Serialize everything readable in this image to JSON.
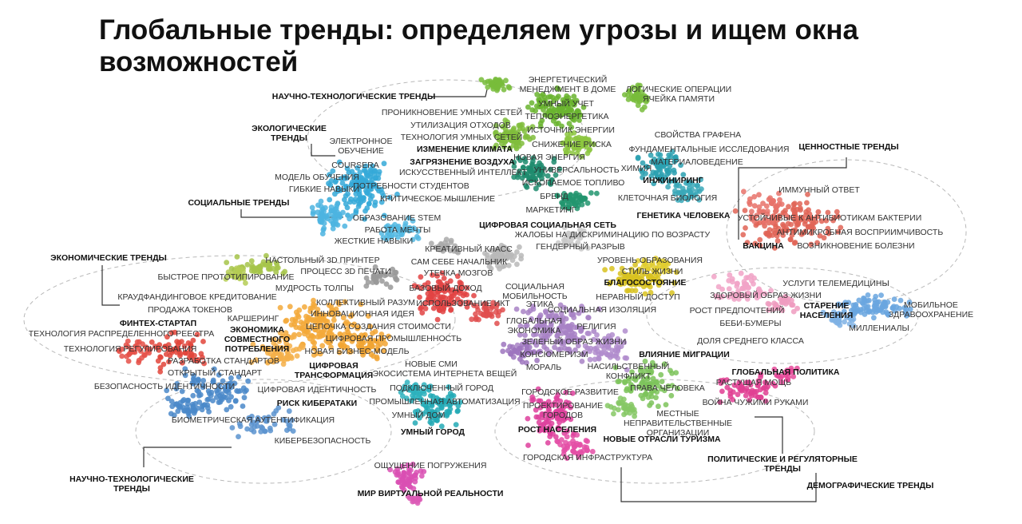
{
  "title": "Глобальные тренды: определяем угрозы и ищем окна возможностей",
  "category_labels": [
    {
      "lines": [
        "НАУЧНО-ТЕХНОЛОГИЧЕСКИЕ ТРЕНДЫ"
      ]
    },
    {
      "lines": [
        "ЭКОЛОГИЧЕСКИЕ",
        "ТРЕНДЫ"
      ]
    },
    {
      "lines": [
        "СОЦИАЛЬНЫЕ ТРЕНДЫ"
      ]
    },
    {
      "lines": [
        "ЭКОНОМИЧЕСКИЕ ТРЕНДЫ"
      ]
    },
    {
      "lines": [
        "ЦЕННОСТНЫЕ ТРЕНДЫ"
      ]
    },
    {
      "lines": [
        "НАУЧНО-ТЕХНОЛОГИЧЕСКИЕ",
        "ТРЕНДЫ"
      ]
    },
    {
      "lines": [
        "ПОЛИТИЧЕСКИЕ И РЕГУЛЯТОРНЫЕ",
        "ТРЕНДЫ"
      ]
    },
    {
      "lines": [
        "ДЕМОГРАФИЧЕСКИЕ ТРЕНДЫ"
      ]
    }
  ],
  "group_labels": [
    {
      "lines": [
        "ИЗМЕНЕНИЕ КЛИМАТА"
      ]
    },
    {
      "lines": [
        "ЗАГРЯЗНЕНИЕ ВОЗДУХА"
      ]
    },
    {
      "lines": [
        "ИНЖИНИРИНГ"
      ]
    },
    {
      "lines": [
        "ГЕНЕТИКА ЧЕЛОВЕКА"
      ]
    },
    {
      "lines": [
        "ЦИФРОВАЯ СОЦИАЛЬНАЯ СЕТЬ"
      ]
    },
    {
      "lines": [
        "ВАКЦИНА"
      ]
    },
    {
      "lines": [
        "БЛАГОСОСТОЯНИЕ"
      ]
    },
    {
      "lines": [
        "СТАРЕНИЕ",
        "НАСЕЛЕНИЯ"
      ]
    },
    {
      "lines": [
        "ФИНТЕХ-СТАРТАП"
      ]
    },
    {
      "lines": [
        "ЭКОНОМИКА",
        "СОВМЕСТНОГО",
        "ПОТРЕБЛЕНИЯ"
      ]
    },
    {
      "lines": [
        "ЦИФРОВАЯ",
        "ТРАНСФОРМАЦИЯ"
      ]
    },
    {
      "lines": [
        "ВЛИЯНИЕ МИГРАЦИИ"
      ]
    },
    {
      "lines": [
        "ГЛОБАЛЬНАЯ ПОЛИТИКА"
      ]
    },
    {
      "lines": [
        "РИСК КИБЕРАТАКИ"
      ]
    },
    {
      "lines": [
        "УМНЫЙ ГОРОД"
      ]
    },
    {
      "lines": [
        "РОСТ НАСЕЛЕНИЯ"
      ]
    },
    {
      "lines": [
        "НОВЫЕ ОТРАСЛИ ТУРИЗМА"
      ]
    },
    {
      "lines": [
        "МИР ВИРТУАЛЬНОЙ РЕАЛЬНОСТИ"
      ]
    }
  ],
  "item_labels": [
    {
      "lines": [
        "ЭНЕРГЕТИЧЕСКИЙ",
        "МЕНЕДЖМЕНТ В ДОМЕ"
      ]
    },
    {
      "lines": [
        "ЛОГИЧЕСКИЕ ОПЕРАЦИИ",
        "ЯЧЕЙКА ПАМЯТИ"
      ]
    },
    {
      "lines": [
        "УМНЫЙ УЧЕТ"
      ]
    },
    {
      "lines": [
        "ПРОНИКНОВЕНИЕ УМНЫХ СЕТЕЙ"
      ]
    },
    {
      "lines": [
        "ТЕПЛОЭНЕРГЕТИКА"
      ]
    },
    {
      "lines": [
        "УТИЛИЗАЦИЯ ОТХОДОВ"
      ]
    },
    {
      "lines": [
        "ИСТОЧНИК ЭНЕРГИИ"
      ]
    },
    {
      "lines": [
        "ТЕХНОЛОГИЯ УМНЫХ СЕТЕЙ"
      ]
    },
    {
      "lines": [
        "СНИЖЕНИЕ РИСКА"
      ]
    },
    {
      "lines": [
        "СВОЙСТВА ГРАФЕНА"
      ]
    },
    {
      "lines": [
        "ЭЛЕКТРОННОЕ",
        "ОБУЧЕНИЕ"
      ]
    },
    {
      "lines": [
        "ФУНДАМЕНТАЛЬНЫЕ ИССЛЕДОВАНИЯ"
      ]
    },
    {
      "lines": [
        "НОВАЯ ЭНЕРГИЯ"
      ]
    },
    {
      "lines": [
        "МАТЕРИАЛОВЕДЕНИЕ"
      ]
    },
    {
      "lines": [
        "COURSERA"
      ]
    },
    {
      "lines": [
        "УНИВЕРСАЛЬНОСТЬ"
      ]
    },
    {
      "lines": [
        "ХИМИЯ"
      ]
    },
    {
      "lines": [
        "МОДЕЛЬ ОБУЧЕНИЯ"
      ]
    },
    {
      "lines": [
        "ИСКУССТВЕННЫЙ ИНТЕЛЛЕКТ"
      ]
    },
    {
      "lines": [
        "ИСКОПАЕМОЕ ТОПЛИВО"
      ]
    },
    {
      "lines": [
        "ГИБКИЕ НАВЫКИ"
      ]
    },
    {
      "lines": [
        "ПОТРЕБНОСТИ СТУДЕНТОВ"
      ]
    },
    {
      "lines": [
        "ИММУННЫЙ ОТВЕТ"
      ]
    },
    {
      "lines": [
        "БРЕНД"
      ]
    },
    {
      "lines": [
        "КРИТИЧЕСКОЕ МЫШЛЕНИЕ"
      ]
    },
    {
      "lines": [
        "КЛЕТОЧНАЯ БИОЛОГИЯ"
      ]
    },
    {
      "lines": [
        "МАРКЕТИНГ"
      ]
    },
    {
      "lines": [
        "ОБРАЗОВАНИЕ STEM"
      ]
    },
    {
      "lines": [
        "УСТОЙЧИВЫЕ К АНТИБИОТИКАМ БАКТЕРИИ"
      ]
    },
    {
      "lines": [
        "РАБОТА МЕЧТЫ"
      ]
    },
    {
      "lines": [
        "АНТИМИКРОБНАЯ ВОСПРИИМЧИВОСТЬ"
      ]
    },
    {
      "lines": [
        "ЖАЛОБЫ НА ДИСКРИМИНАЦИЮ ПО ВОЗРАСТУ"
      ]
    },
    {
      "lines": [
        "ЖЕСТКИЕ НАВЫКИ"
      ]
    },
    {
      "lines": [
        "ГЕНДЕРНЫЙ РАЗРЫВ"
      ]
    },
    {
      "lines": [
        "ВОЗНИКНОВЕНИЕ БОЛЕЗНИ"
      ]
    },
    {
      "lines": [
        "КРЕАТИВНЫЙ КЛАСС"
      ]
    },
    {
      "lines": [
        "НАСТОЛЬНЫЙ 3D ПРИНТЕР"
      ]
    },
    {
      "lines": [
        "САМ СЕБЕ НАЧАЛЬНИК"
      ]
    },
    {
      "lines": [
        "УРОВЕНЬ ОБРАЗОВАНИЯ"
      ]
    },
    {
      "lines": [
        "ПРОЦЕСС 3D ПЕЧАТИ"
      ]
    },
    {
      "lines": [
        "УТЕЧКА МОЗГОВ"
      ]
    },
    {
      "lines": [
        "СТИЛЬ ЖИЗНИ"
      ]
    },
    {
      "lines": [
        "БЫСТРОЕ ПРОТОТИПИРОВАНИЕ"
      ]
    },
    {
      "lines": [
        "МУДРОСТЬ ТОЛПЫ"
      ]
    },
    {
      "lines": [
        "БАЗОВЫЙ ДОХОД"
      ]
    },
    {
      "lines": [
        "СОЦИАЛЬНАЯ",
        "МОБИЛЬНОСТЬ"
      ]
    },
    {
      "lines": [
        "УСЛУГИ ТЕЛЕМЕДИЦИНЫ"
      ]
    },
    {
      "lines": [
        "НЕРАВНЫЙ ДОСТУП"
      ]
    },
    {
      "lines": [
        "ЗДОРОВЫЙ ОБРАЗ ЖИЗНИ"
      ]
    },
    {
      "lines": [
        "КРАУДФАНДИНГОВОЕ КРЕДИТОВАНИЕ"
      ]
    },
    {
      "lines": [
        "КОЛЛЕКТИВНЫЙ РАЗУМ"
      ]
    },
    {
      "lines": [
        "ИСПОЛЬЗОВАНИЕ ИКТ"
      ]
    },
    {
      "lines": [
        "ЭТИКА"
      ]
    },
    {
      "lines": [
        "МОБИЛЬНОЕ",
        "ЗДРАВООХРАНЕНИЕ"
      ]
    },
    {
      "lines": [
        "ПРОДАЖА ТОКЕНОВ"
      ]
    },
    {
      "lines": [
        "СОЦИАЛЬНАЯ ИЗОЛЯЦИЯ"
      ]
    },
    {
      "lines": [
        "РОСТ ПРЕДПОЧТЕНИЙ"
      ]
    },
    {
      "lines": [
        "ИННОВАЦИОННАЯ ИДЕЯ"
      ]
    },
    {
      "lines": [
        "ГЛОБАЛЬНАЯ",
        "ЭКОНОМИКА"
      ]
    },
    {
      "lines": [
        "БЕБИ-БУМЕРЫ"
      ]
    },
    {
      "lines": [
        "ТЕХНОЛОГИЯ РАСПРЕДЕЛЕННОГО РЕЕСТРА"
      ]
    },
    {
      "lines": [
        "КАРШЕРИНГ"
      ]
    },
    {
      "lines": [
        "ЦЕПОЧКА СОЗДАНИЯ СТОИМОСТИ"
      ]
    },
    {
      "lines": [
        "РЕЛИГИЯ"
      ]
    },
    {
      "lines": [
        "МИЛЛЕНИАЛЫ"
      ]
    },
    {
      "lines": [
        "ТЕХНОЛОГИЯ РЕГУЛИРОВАНИЯ"
      ]
    },
    {
      "lines": [
        "ЦИФРОВАЯ ПРОМЫШЛЕННОСТЬ"
      ]
    },
    {
      "lines": [
        "ЗЕЛЕНЫЙ ОБРАЗ ЖИЗНИ"
      ]
    },
    {
      "lines": [
        "ДОЛЯ СРЕДНЕГО КЛАССА"
      ]
    },
    {
      "lines": [
        "НОВАЯ БИЗНЕС-МОДЕЛЬ"
      ]
    },
    {
      "lines": [
        "КОНСЮМЕРИЗМ"
      ]
    },
    {
      "lines": [
        "РАЗРАБОТКА СТАНДАРТОВ"
      ]
    },
    {
      "lines": [
        "НОВЫЕ СМИ"
      ]
    },
    {
      "lines": [
        "МОРАЛЬ"
      ]
    },
    {
      "lines": [
        "НАСИЛЬСТВЕННЫЙ",
        "КОНФЛИКТ"
      ]
    },
    {
      "lines": [
        "ОТКРЫТЫЙ СТАНДАРТ"
      ]
    },
    {
      "lines": [
        "ЭКОСИСТЕМА ИНТЕРНЕТА ВЕЩЕЙ"
      ]
    },
    {
      "lines": [
        "РАСТУЩАЯ МОЩЬ"
      ]
    },
    {
      "lines": [
        "БЕЗОПАСНОСТЬ ИДЕНТИЧНОСТИ"
      ]
    },
    {
      "lines": [
        "ЦИФРОВАЯ ИДЕНТИЧНОСТЬ"
      ]
    },
    {
      "lines": [
        "ПОДКЛЮЧЕННЫЙ ГОРОД"
      ]
    },
    {
      "lines": [
        "ПРАВА ЧЕЛОВЕКА"
      ]
    },
    {
      "lines": [
        "ГОРОДСКОЕ РАЗВИТИЕ"
      ]
    },
    {
      "lines": [
        "ПРОМЫШЛЕННАЯ АВТОМАТИЗАЦИЯ"
      ]
    },
    {
      "lines": [
        "ПРОЕКТИРОВАНИЕ",
        "ГОРОДОВ"
      ]
    },
    {
      "lines": [
        "ВОЙНА ЧУЖИМИ РУКАМИ"
      ]
    },
    {
      "lines": [
        "МЕСТНЫЕ",
        "НЕПРАВИТЕЛЬСТВЕННЫЕ",
        "ОРГАНИЗАЦИИ"
      ]
    },
    {
      "lines": [
        "БИОМЕТРИЧЕСКАЯ АУТЕНТИФИКАЦИЯ"
      ]
    },
    {
      "lines": [
        "УМНЫЙ ДОМ"
      ]
    },
    {
      "lines": [
        "КИБЕРБЕЗОПАСНОСТЬ"
      ]
    },
    {
      "lines": [
        "ГОРОДСКАЯ ИНФРАСТРУКТУРА"
      ]
    },
    {
      "lines": [
        "ОЩУЩЕНИЕ ПОГРУЖЕНИЯ"
      ]
    }
  ]
}
